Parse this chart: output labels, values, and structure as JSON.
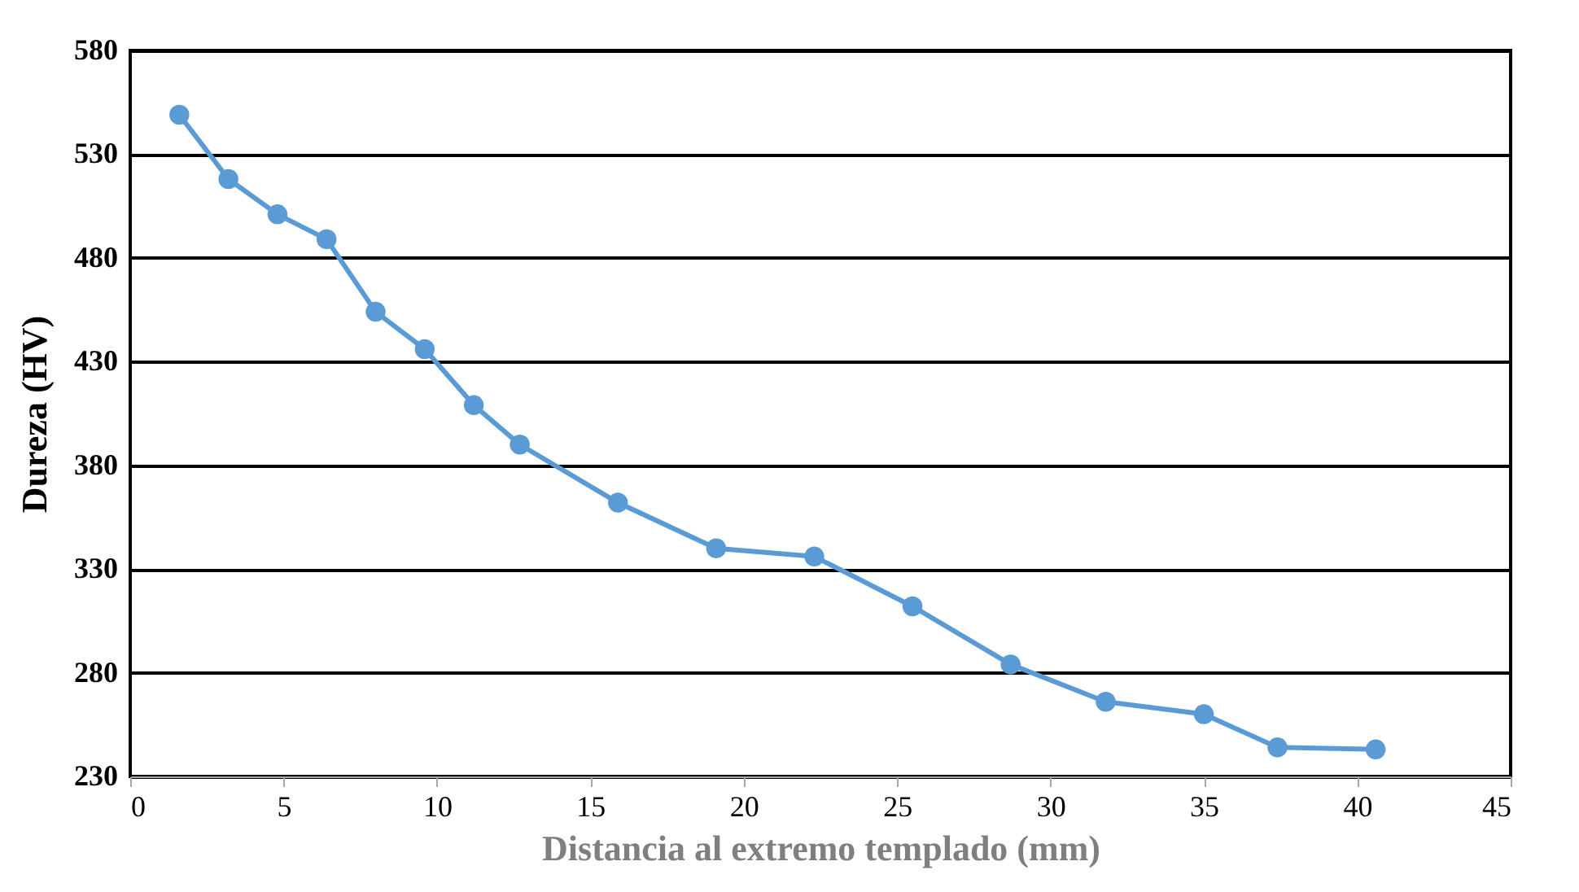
{
  "chart_data": {
    "type": "line",
    "xlabel": "Distancia al extremo templado (mm)",
    "ylabel": "Dureza (HV)",
    "x": [
      1.6,
      3.2,
      4.8,
      6.4,
      8,
      9.6,
      11.2,
      12.7,
      15.9,
      19.1,
      22.3,
      25.5,
      28.7,
      31.8,
      35,
      37.4,
      40.6
    ],
    "series": [
      {
        "color": "#5b9bd5",
        "values": [
          549,
          518,
          501,
          489,
          454,
          436,
          409,
          390,
          362,
          340,
          336,
          312,
          284,
          266,
          260,
          244,
          243
        ]
      }
    ],
    "xlim": [
      0,
      45
    ],
    "xticks": [
      0,
      5,
      10,
      15,
      20,
      25,
      30,
      35,
      40,
      45
    ],
    "ylim": [
      230,
      580
    ],
    "yticks": [
      230,
      280,
      330,
      380,
      430,
      480,
      530,
      580
    ],
    "grid": "y",
    "marker": "circle",
    "line_style": "solid"
  }
}
